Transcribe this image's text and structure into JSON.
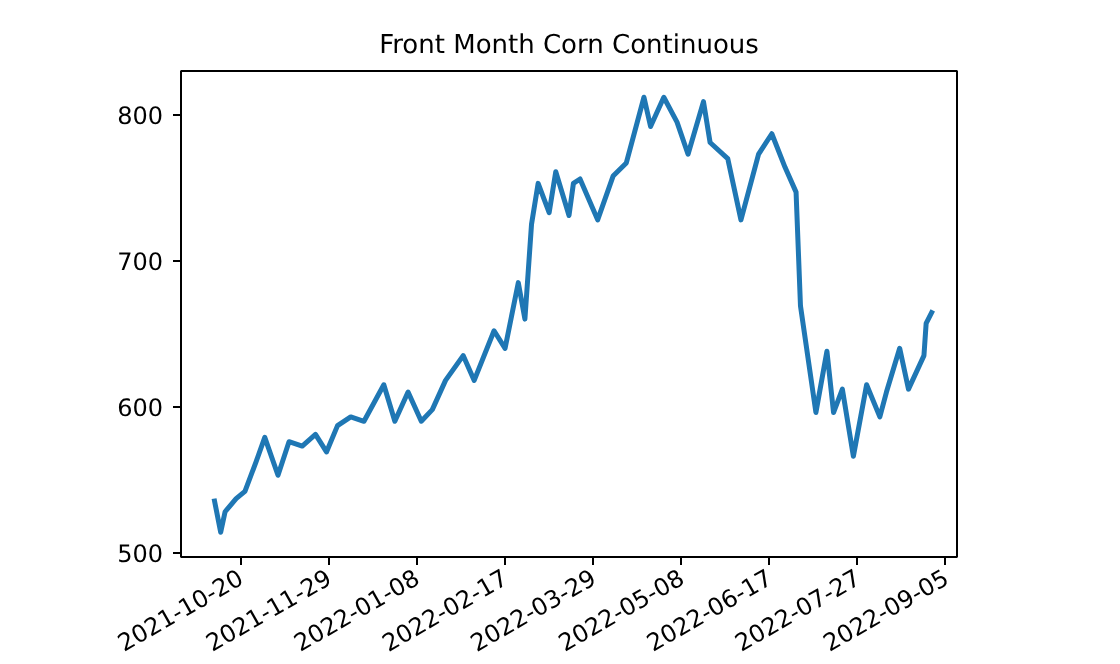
{
  "chart_data": {
    "type": "line",
    "title": "Front Month Corn Continuous",
    "x": [
      "2021-10-08",
      "2021-10-11",
      "2021-10-13",
      "2021-10-18",
      "2021-10-22",
      "2021-10-27",
      "2021-10-31",
      "2021-11-06",
      "2021-11-11",
      "2021-11-17",
      "2021-11-23",
      "2021-11-28",
      "2021-12-03",
      "2021-12-09",
      "2021-12-15",
      "2021-12-24",
      "2021-12-29",
      "2022-01-04",
      "2022-01-10",
      "2022-01-15",
      "2022-01-21",
      "2022-01-29",
      "2022-02-03",
      "2022-02-12",
      "2022-02-17",
      "2022-02-23",
      "2022-02-26",
      "2022-03-01",
      "2022-03-04",
      "2022-03-09",
      "2022-03-12",
      "2022-03-18",
      "2022-03-20",
      "2022-03-23",
      "2022-03-31",
      "2022-04-07",
      "2022-04-13",
      "2022-04-21",
      "2022-04-24",
      "2022-04-30",
      "2022-05-06",
      "2022-05-11",
      "2022-05-18",
      "2022-05-21",
      "2022-05-29",
      "2022-06-04",
      "2022-06-12",
      "2022-06-18",
      "2022-06-24",
      "2022-06-29",
      "2022-07-01",
      "2022-07-08",
      "2022-07-13",
      "2022-07-16",
      "2022-07-20",
      "2022-07-25",
      "2022-07-31",
      "2022-08-06",
      "2022-08-09",
      "2022-08-15",
      "2022-08-19",
      "2022-08-26",
      "2022-08-27",
      "2022-08-30"
    ],
    "series": [
      {
        "color": "#1f77b4",
        "values": [
          537,
          514,
          528,
          537,
          542,
          562,
          579,
          553,
          576,
          573,
          581,
          569,
          587,
          593,
          590,
          615,
          590,
          610,
          590,
          598,
          618,
          635,
          618,
          652,
          640,
          685,
          660,
          725,
          753,
          733,
          761,
          731,
          753,
          756,
          728,
          758,
          767,
          812,
          792,
          812,
          795,
          773,
          809,
          781,
          770,
          728,
          773,
          787,
          764,
          747,
          669,
          596,
          638,
          596,
          612,
          566,
          615,
          593,
          610,
          640,
          612,
          635,
          657,
          666
        ]
      }
    ],
    "xlim": [
      "2021-09-23",
      "2022-09-10"
    ],
    "xticks": [
      "2021-10-20",
      "2021-11-29",
      "2022-01-08",
      "2022-02-17",
      "2022-03-29",
      "2022-05-08",
      "2022-06-17",
      "2022-07-27",
      "2022-09-05"
    ],
    "ylim": [
      497,
      830
    ],
    "yticks": [
      500,
      600,
      700,
      800
    ],
    "grid": false,
    "marker": "none",
    "line_style": "solid"
  }
}
